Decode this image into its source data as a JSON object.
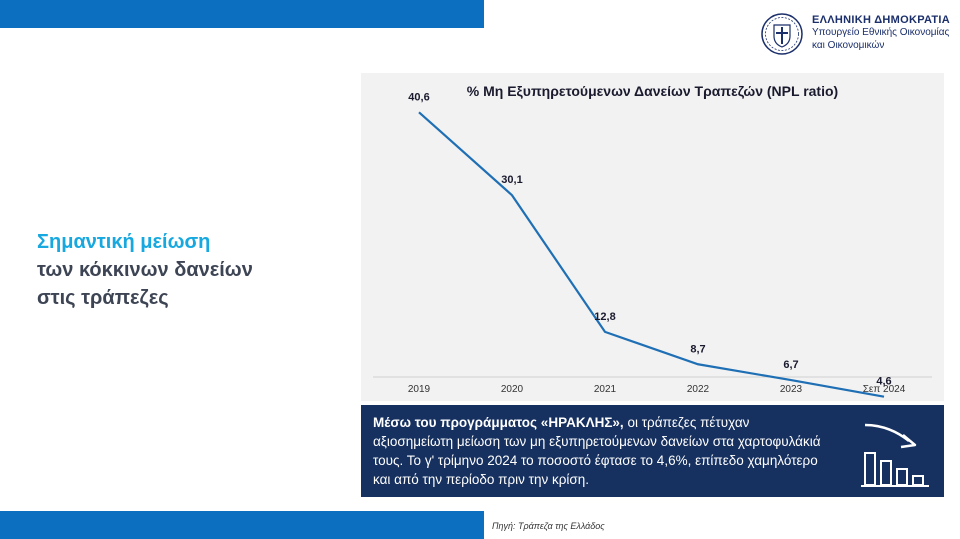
{
  "header": {
    "ministry_line1": "ΕΛΛΗΝΙΚΗ ΔΗΜΟΚΡΑΤΙΑ",
    "ministry_line2": "Υπουργείο Εθνικής Οικονομίας",
    "ministry_line3": "και Οικονομικών"
  },
  "headline": {
    "line1": "Σημαντική μείωση",
    "line2": "των κόκκινων δανείων",
    "line3": "στις τράπεζες"
  },
  "chart_data": {
    "type": "line",
    "title": "% Μη Εξυπηρετούμενων Δανείων Τραπεζών (NPL ratio)",
    "categories": [
      "2019",
      "2020",
      "2021",
      "2022",
      "2023",
      "Σεπ 2024"
    ],
    "series": [
      {
        "values": [
          40.6,
          30.1,
          12.8,
          8.7,
          6.7,
          4.6
        ]
      }
    ],
    "data_labels": [
      "40,6",
      "30,1",
      "12,8",
      "8,7",
      "6,7",
      "4,6"
    ],
    "ylim": [
      0,
      45
    ],
    "grid": false,
    "line_color": "#1f6fb5"
  },
  "info": {
    "bold": "Μέσω του προγράμματος «ΗΡΑΚΛΗΣ»,",
    "text": " οι τράπεζες πέτυχαν αξιοσημείωτη μείωση των μη εξυπηρετούμενων δανείων στα χαρτοφυλάκιά τους.  Το γ' τρίμηνο 2024 το ποσοστό έφτασε το 4,6%, επίπεδο χαμηλότερο και από την περίοδο πριν την κρίση."
  },
  "footer": {
    "source": "Πηγή: Τράπεζα της Ελλάδος"
  },
  "colors": {
    "brand_blue": "#0d6fbf",
    "navy": "#16305f",
    "headline_accent": "#17a8e0"
  }
}
